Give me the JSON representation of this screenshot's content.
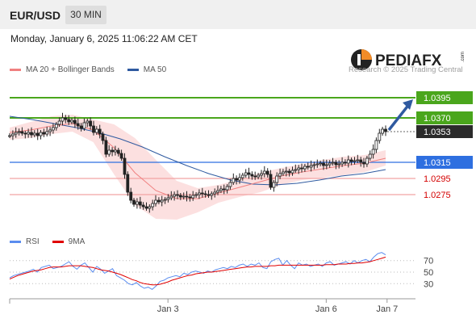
{
  "header": {
    "pair": "EUR/USD",
    "timeframe": "30 MIN"
  },
  "timestamp": "Monday, January 6, 2025 11:06:22 AM CET",
  "logo": {
    "brand": "PEDIAFX",
    "suffix": ".com"
  },
  "copyright": "Research © 2025 Trading Central",
  "legend_main": [
    {
      "label": "MA 20 + Bollinger Bands",
      "color": "#f08080"
    },
    {
      "label": "MA 50",
      "color": "#2f5aa0"
    }
  ],
  "legend_rsi": [
    {
      "label": "RSI",
      "color": "#5b8def"
    },
    {
      "label": "9MA",
      "color": "#e00000"
    }
  ],
  "chart_data": {
    "type": "candlestick",
    "price_scale": {
      "min": 1.023,
      "max": 1.042
    },
    "levels": [
      {
        "value": 1.0395,
        "label": "1.0395",
        "kind": "resistance"
      },
      {
        "value": 1.037,
        "label": "1.0370",
        "kind": "resistance"
      },
      {
        "value": 1.0353,
        "label": "1.0353",
        "kind": "current"
      },
      {
        "value": 1.0315,
        "label": "1.0315",
        "kind": "pivot"
      },
      {
        "value": 1.0295,
        "label": "1.0295",
        "kind": "support"
      },
      {
        "value": 1.0275,
        "label": "1.0275",
        "kind": "support"
      }
    ],
    "closes": [
      1.0348,
      1.035,
      1.0352,
      1.0353,
      1.0351,
      1.035,
      1.0352,
      1.0349,
      1.0351,
      1.0348,
      1.0352,
      1.035,
      1.0353,
      1.0355,
      1.0358,
      1.0362,
      1.0366,
      1.037,
      1.0368,
      1.0365,
      1.0367,
      1.0363,
      1.036,
      1.0357,
      1.0364,
      1.0366,
      1.036,
      1.0352,
      1.0356,
      1.035,
      1.0342,
      1.0325,
      1.033,
      1.0328,
      1.033,
      1.0326,
      1.032,
      1.03,
      1.0278,
      1.0268,
      1.0263,
      1.0266,
      1.0262,
      1.026,
      1.0258,
      1.026,
      1.0264,
      1.0268,
      1.0266,
      1.0268,
      1.0269,
      1.0271,
      1.0273,
      1.0275,
      1.0274,
      1.0272,
      1.0273,
      1.0272,
      1.0271,
      1.0274,
      1.0275,
      1.0277,
      1.0276,
      1.0275,
      1.0274,
      1.0276,
      1.0278,
      1.028,
      1.0282,
      1.0281,
      1.0285,
      1.029,
      1.0295,
      1.0293,
      1.0296,
      1.0299,
      1.0302,
      1.03,
      1.0298,
      1.0297,
      1.0299,
      1.0301,
      1.0304,
      1.03,
      1.0284,
      1.029,
      1.0298,
      1.0301,
      1.0303,
      1.0304,
      1.0302,
      1.0305,
      1.0306,
      1.0308,
      1.0307,
      1.031,
      1.0309,
      1.0311,
      1.0312,
      1.0313,
      1.0314,
      1.0311,
      1.0312,
      1.0314,
      1.0315,
      1.0312,
      1.0313,
      1.0315,
      1.0314,
      1.0318,
      1.0316,
      1.0317,
      1.0318,
      1.0315,
      1.0313,
      1.032,
      1.0325,
      1.0331,
      1.0342,
      1.0351,
      1.0356,
      1.0353
    ],
    "ma50": [
      1.0372,
      1.0368,
      1.0363,
      1.0358,
      1.0352,
      1.0344,
      1.0334,
      1.0322,
      1.0311,
      1.0301,
      1.0293,
      1.0288,
      1.0287,
      1.0289,
      1.0293,
      1.0298,
      1.0301,
      1.0306
    ],
    "ma20": [
      1.0352,
      1.0355,
      1.036,
      1.0363,
      1.0355,
      1.0333,
      1.0302,
      1.028,
      1.027,
      1.027,
      1.0277,
      1.0284,
      1.0291,
      1.0298,
      1.0303,
      1.0307,
      1.0311,
      1.0314,
      1.032
    ],
    "bb_upper": [
      1.0358,
      1.0365,
      1.0372,
      1.0374,
      1.0368,
      1.0362,
      1.0345,
      1.0318,
      1.0292,
      1.0283,
      1.0287,
      1.0294,
      1.0302,
      1.0308,
      1.0313,
      1.0318,
      1.0322,
      1.0324,
      1.033
    ],
    "bb_lower": [
      1.0343,
      1.0345,
      1.035,
      1.0353,
      1.034,
      1.03,
      1.0262,
      1.0245,
      1.0244,
      1.0253,
      1.0265,
      1.0272,
      1.0278,
      1.0287,
      1.0293,
      1.0296,
      1.0299,
      1.0303,
      1.0311
    ],
    "rsi": {
      "ticks": [
        70,
        50,
        30
      ],
      "range": [
        15,
        85
      ],
      "rsi_values": [
        40,
        44,
        46,
        48,
        50,
        52,
        55,
        50,
        58,
        60,
        62,
        56,
        58,
        60,
        64,
        68,
        60,
        55,
        62,
        66,
        58,
        50,
        60,
        55,
        48,
        52,
        56,
        44,
        40,
        36,
        30,
        28,
        32,
        26,
        22,
        24,
        20,
        26,
        34,
        36,
        40,
        42,
        44,
        42,
        48,
        46,
        50,
        52,
        50,
        48,
        52,
        50,
        54,
        56,
        58,
        56,
        60,
        58,
        62,
        64,
        60,
        64,
        62,
        66,
        58,
        56,
        68,
        72,
        74,
        62,
        70,
        62,
        56,
        66,
        62,
        64,
        60,
        62,
        64,
        60,
        66,
        68,
        62,
        64,
        66,
        68,
        64,
        70,
        66,
        70,
        72,
        68,
        76,
        82,
        84,
        80
      ],
      "ma9_values": [
        38,
        41,
        44,
        46,
        48,
        50,
        52,
        53,
        54,
        56,
        58,
        59,
        59,
        59,
        60,
        61,
        61,
        61,
        61,
        60,
        59,
        58,
        56,
        54,
        53,
        52,
        50,
        48,
        46,
        43,
        40,
        37,
        35,
        32,
        30,
        29,
        28,
        28,
        29,
        31,
        33,
        36,
        38,
        40,
        42,
        44,
        45,
        47,
        48,
        49,
        50,
        50,
        51,
        52,
        53,
        54,
        55,
        56,
        57,
        58,
        59,
        59,
        60,
        60,
        60,
        60,
        61,
        61,
        62,
        62,
        62,
        62,
        62,
        62,
        62,
        62,
        62,
        62,
        62,
        62,
        63,
        63,
        63,
        64,
        64,
        64,
        65,
        65,
        66,
        66,
        67,
        68,
        70,
        72,
        74,
        76
      ]
    },
    "x_ticks": [
      {
        "label": "Jan 3",
        "pos": 0.39
      },
      {
        "label": "Jan 6",
        "pos": 0.78
      },
      {
        "label": "Jan 7",
        "pos": 0.93
      }
    ]
  }
}
